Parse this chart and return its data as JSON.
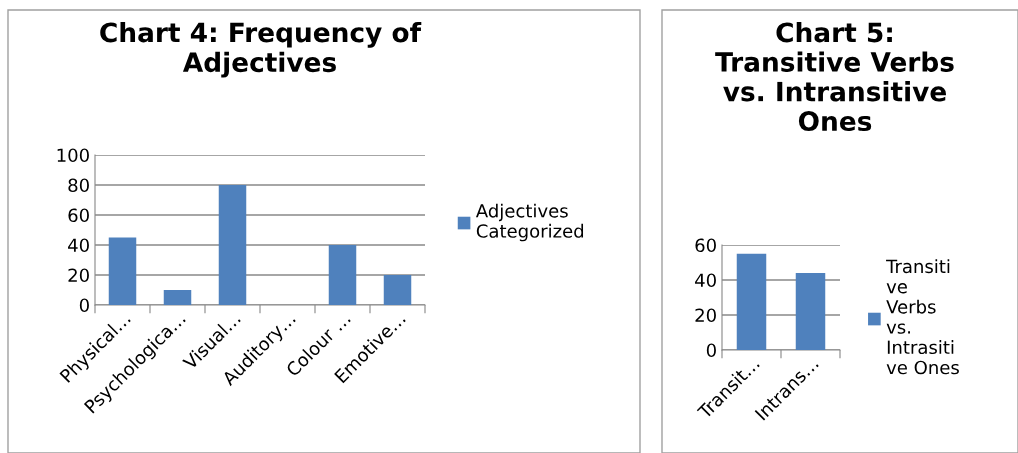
{
  "chart_data": [
    {
      "type": "bar",
      "title": "Chart 4: Frequency of\nAdjectives",
      "categories": [
        "Physical…",
        "Psychologica…",
        "Visual…",
        "Auditory…",
        "Colour …",
        "Emotive…"
      ],
      "series": [
        {
          "name": "Adjectives\nCategorized",
          "color": "#4f81bd",
          "values": [
            45,
            10,
            80,
            0,
            40,
            20
          ]
        }
      ],
      "ylim": [
        0,
        100
      ],
      "yticks": [
        0,
        20,
        40,
        60,
        80,
        100
      ],
      "grid": "y",
      "legend": "right"
    },
    {
      "type": "bar",
      "title": "Chart 5:\nTransitive Verbs\nvs. Intransitive\nOnes",
      "categories": [
        "Transit…",
        "Intrans…"
      ],
      "series": [
        {
          "name": "Transiti\nve\nVerbs\nvs.\nIntrasiti\nve Ones",
          "color": "#4f81bd",
          "values": [
            55,
            44
          ]
        }
      ],
      "ylim": [
        0,
        60
      ],
      "yticks": [
        0,
        20,
        40,
        60
      ],
      "grid": "y",
      "legend": "right"
    }
  ]
}
